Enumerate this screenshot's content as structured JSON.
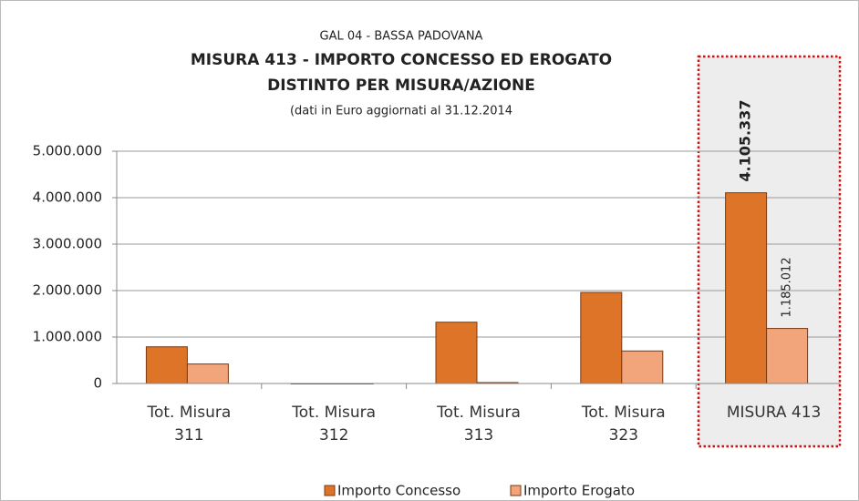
{
  "chart_data": {
    "type": "bar",
    "title": [
      "GAL 04 - BASSA PADOVANA",
      "MISURA 413 - IMPORTO CONCESSO ED EROGATO",
      "DISTINTO PER MISURA/AZIONE",
      "(dati in Euro aggiornati al 31.12.2014"
    ],
    "categories": [
      "Tot. Misura 311",
      "Tot. Misura 312",
      "Tot. Misura 313",
      "Tot. Misura 323",
      "MISURA 413"
    ],
    "series": [
      {
        "name": "Importo Concesso",
        "color": "#de7428",
        "values": [
          790000,
          0,
          1320000,
          1960000,
          4105337
        ],
        "value_labels": [
          null,
          null,
          null,
          null,
          "4.105.337"
        ]
      },
      {
        "name": "Importo Erogato",
        "color": "#f2a47a",
        "values": [
          420000,
          0,
          20000,
          700000,
          1185012
        ],
        "value_labels": [
          null,
          null,
          null,
          null,
          "1.185.012"
        ]
      }
    ],
    "ylim": [
      0,
      5000000
    ],
    "yticks": [
      0,
      {
        "value": 1000000,
        "label": "1.000.000"
      },
      {
        "value": 2000000,
        "label": "2.000.000"
      },
      {
        "value": 3000000,
        "label": "3.000.000"
      },
      {
        "value": 4000000,
        "label": "4.000.000"
      },
      {
        "value": 5000000,
        "label": "5.000.000"
      }
    ],
    "grid": true,
    "legend": "bottom"
  }
}
